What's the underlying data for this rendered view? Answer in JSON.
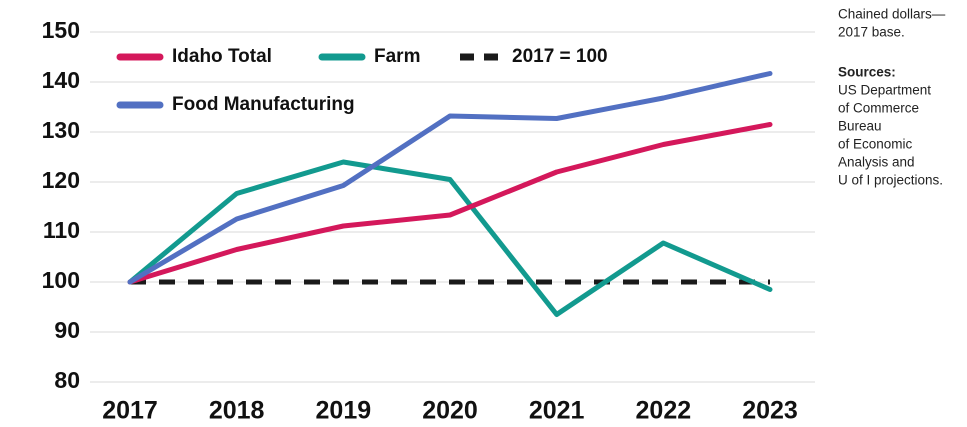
{
  "chart_data": {
    "type": "line",
    "categories": [
      "2017",
      "2018",
      "2019",
      "2020",
      "2021",
      "2022",
      "2023"
    ],
    "series": [
      {
        "name": "Idaho Total",
        "color": "#d4185b",
        "values": [
          100,
          106.5,
          111.2,
          113.4,
          122,
          127.5,
          131.5
        ]
      },
      {
        "name": "Farm",
        "color": "#129a8f",
        "values": [
          100,
          117.7,
          124,
          120.5,
          93.5,
          107.8,
          98.5
        ]
      },
      {
        "name": "2017 = 100",
        "color": "#1a1a1a",
        "dashed": true,
        "values": [
          100,
          100,
          100,
          100,
          100,
          100,
          100
        ]
      },
      {
        "name": "Food Manufacturing",
        "color": "#5270c2",
        "values": [
          100,
          112.6,
          119.3,
          133.2,
          132.7,
          136.8,
          141.7
        ]
      }
    ],
    "ylim": [
      80,
      150
    ],
    "yticks": [
      80,
      90,
      100,
      110,
      120,
      130,
      140,
      150
    ],
    "grid": true,
    "legend": "top-left",
    "note": [
      "Chained dollars—",
      "2017 base."
    ],
    "sources_title": "Sources:",
    "sources": [
      "US Department",
      "of Commerce",
      "Bureau",
      "of Economic",
      "Analysis and",
      "U of I projections."
    ]
  }
}
